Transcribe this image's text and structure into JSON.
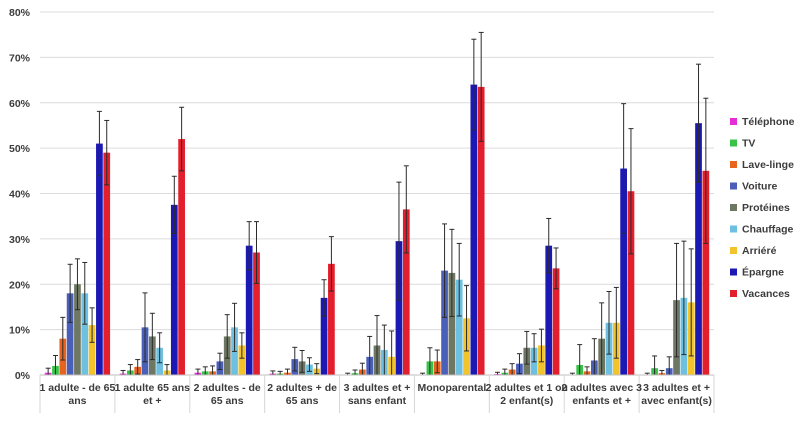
{
  "chart_data": {
    "type": "bar",
    "title": "",
    "xlabel": "",
    "ylabel": "",
    "ylim": [
      0,
      80
    ],
    "y_ticks": [
      "0%",
      "10%",
      "20%",
      "30%",
      "40%",
      "50%",
      "60%",
      "70%",
      "80%"
    ],
    "grid": "horizontal",
    "legend_position": "right",
    "error_bars": true,
    "categories": [
      [
        "1 adulte - de 65",
        "ans"
      ],
      [
        "1 adulte 65 ans",
        "et +"
      ],
      [
        "2 adultes - de",
        "65 ans"
      ],
      [
        "2 adultes + de",
        "65 ans"
      ],
      [
        "3 adultes et +",
        "sans enfant"
      ],
      [
        "Monoparental"
      ],
      [
        "2 adultes et 1 ou",
        "2 enfant(s)"
      ],
      [
        "2 adultes avec 3",
        "enfants et +"
      ],
      [
        "3 adultes et +",
        "avec enfant(s)"
      ]
    ],
    "series": [
      {
        "name": "Téléphone",
        "color": "#e62ed6",
        "values": [
          0.5,
          0.3,
          0.5,
          0.3,
          0.1,
          0.1,
          0.2,
          0.1,
          0.1
        ],
        "errors": [
          1,
          0.7,
          0.8,
          0.6,
          0.3,
          0.3,
          0.4,
          0.3,
          0.3
        ]
      },
      {
        "name": "TV",
        "color": "#39c24a",
        "values": [
          2.0,
          1.0,
          0.8,
          0.3,
          0.4,
          3.0,
          0.5,
          2.2,
          1.5
        ],
        "errors": [
          2.3,
          1.3,
          1,
          0.5,
          0.7,
          3,
          0.8,
          4.5,
          2.7
        ]
      },
      {
        "name": "Lave-linge",
        "color": "#e8641e",
        "values": [
          8.0,
          1.8,
          0.8,
          0.5,
          1.2,
          3.0,
          1.2,
          0.8,
          0.4
        ],
        "errors": [
          4.7,
          1.6,
          1.2,
          0.8,
          1.4,
          2.5,
          1.3,
          1,
          0.6
        ]
      },
      {
        "name": "Voiture",
        "color": "#4a5fb8",
        "values": [
          18,
          10.5,
          3.0,
          3.5,
          4.0,
          23.0,
          2.5,
          3.2,
          1.5
        ],
        "errors": [
          6.4,
          7.6,
          1.8,
          2.6,
          4.5,
          10.3,
          2.2,
          4.8,
          2.5
        ]
      },
      {
        "name": "Protéines",
        "color": "#6e7763",
        "values": [
          20,
          8.5,
          8.5,
          3.0,
          6.5,
          22.5,
          6.0,
          8.0,
          16.5
        ],
        "errors": [
          5.6,
          5.1,
          4.8,
          2.4,
          6.6,
          9.6,
          3.6,
          7.9,
          12.5
        ]
      },
      {
        "name": "Chauffage",
        "color": "#6ec0e0",
        "values": [
          18,
          6.0,
          10.5,
          2.3,
          5.5,
          21.0,
          6.0,
          11.5,
          17.0
        ],
        "errors": [
          6.8,
          3.3,
          5.3,
          1.5,
          5.5,
          8.0,
          3.1,
          6.9,
          12.5
        ]
      },
      {
        "name": "Arriéré",
        "color": "#f2c32a",
        "values": [
          11,
          1.0,
          6.5,
          1.4,
          4.0,
          12.5,
          6.5,
          11.5,
          16.0
        ],
        "errors": [
          3.8,
          1.3,
          2.8,
          1.1,
          5.7,
          7.2,
          3.6,
          7.8,
          11.8
        ]
      },
      {
        "name": "Épargne",
        "color": "#1c18b4",
        "values": [
          51,
          37.5,
          28.5,
          17.0,
          29.5,
          64.0,
          28.5,
          45.5,
          55.5
        ],
        "errors": [
          7.1,
          6.3,
          5.3,
          4.0,
          13,
          10.0,
          6.0,
          14.3,
          13.0
        ]
      },
      {
        "name": "Vacances",
        "color": "#e21f2c",
        "values": [
          49,
          52.0,
          27.0,
          24.5,
          36.5,
          63.5,
          23.5,
          40.5,
          45.0
        ],
        "errors": [
          7.1,
          7.0,
          6.8,
          6.0,
          9.6,
          12.0,
          4.5,
          13.8,
          16.0
        ]
      }
    ]
  }
}
